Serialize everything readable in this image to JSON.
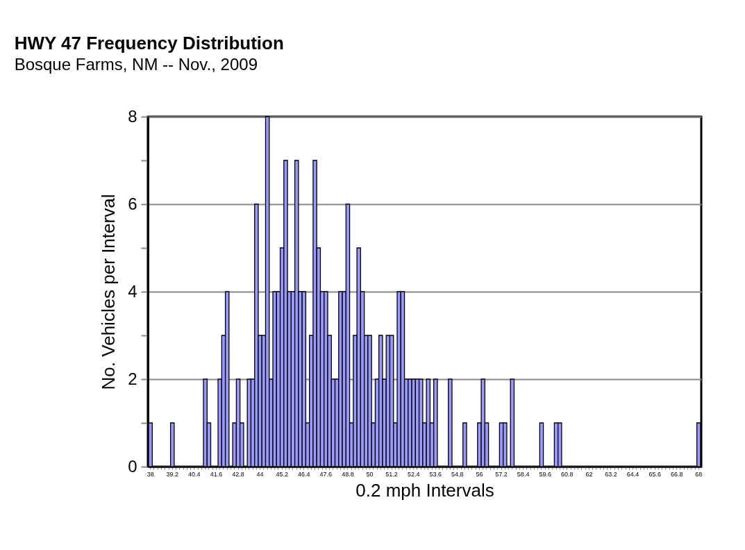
{
  "chart_data": {
    "type": "bar",
    "title": "HWY 47 Frequency Distribution",
    "subtitle": "Bosque Farms, NM -- Nov., 2009",
    "xlabel": "0.2 mph Intervals",
    "ylabel": "No. Vehicles per Interval",
    "categories": [
      "38",
      null,
      null,
      null,
      null,
      null,
      "39.2",
      null,
      null,
      null,
      null,
      null,
      "40.4",
      null,
      null,
      null,
      null,
      null,
      "41.6",
      null,
      null,
      null,
      null,
      null,
      "42.8",
      null,
      null,
      null,
      null,
      null,
      "44",
      null,
      null,
      null,
      null,
      null,
      "45.2",
      null,
      null,
      null,
      null,
      null,
      "46.4",
      null,
      null,
      null,
      null,
      null,
      "47.6",
      null,
      null,
      null,
      null,
      null,
      "48.8",
      null,
      null,
      null,
      null,
      null,
      "50",
      null,
      null,
      null,
      null,
      null,
      "51.2",
      null,
      null,
      null,
      null,
      null,
      "52.4",
      null,
      null,
      null,
      null,
      null,
      "53.6",
      null,
      null,
      null,
      null,
      null,
      "54.8",
      null,
      null,
      null,
      null,
      null,
      "56",
      null,
      null,
      null,
      null,
      null,
      "57.2",
      null,
      null,
      null,
      null,
      null,
      "58.4",
      null,
      null,
      null,
      null,
      null,
      "59.6",
      null,
      null,
      null,
      null,
      null,
      "60.8",
      null,
      null,
      null,
      null,
      null,
      "62",
      null,
      null,
      null,
      null,
      null,
      "63.2",
      null,
      null,
      null,
      null,
      null,
      "64.4",
      null,
      null,
      null,
      null,
      null,
      "65.6",
      null,
      null,
      null,
      null,
      null,
      "66.8",
      null,
      null,
      null,
      null,
      null,
      "68"
    ],
    "values": [
      1,
      0,
      0,
      0,
      0,
      0,
      1,
      0,
      0,
      0,
      0,
      0,
      0,
      0,
      0,
      2,
      1,
      0,
      0,
      2,
      3,
      4,
      0,
      1,
      2,
      1,
      0,
      2,
      2,
      6,
      3,
      3,
      8,
      2,
      4,
      4,
      5,
      7,
      4,
      4,
      7,
      4,
      4,
      1,
      3,
      7,
      5,
      4,
      4,
      3,
      2,
      2,
      4,
      4,
      6,
      1,
      3,
      5,
      4,
      3,
      3,
      1,
      2,
      3,
      2,
      3,
      3,
      1,
      4,
      4,
      2,
      2,
      2,
      2,
      2,
      1,
      2,
      1,
      2,
      0,
      0,
      0,
      2,
      0,
      0,
      0,
      1,
      0,
      0,
      0,
      1,
      2,
      1,
      0,
      0,
      0,
      1,
      1,
      0,
      2,
      0,
      0,
      0,
      0,
      0,
      0,
      0,
      1,
      0,
      0,
      0,
      1,
      1,
      0,
      0,
      0,
      0,
      0,
      0,
      0,
      0,
      0,
      0,
      0,
      0,
      0,
      0,
      0,
      0,
      0,
      0,
      0,
      0,
      0,
      0,
      0,
      0,
      0,
      0,
      0,
      0,
      0,
      0,
      0,
      0,
      0,
      0,
      0,
      0,
      0,
      1
    ],
    "color": "#9999ff",
    "ylim": [
      0,
      8
    ],
    "yticks": [
      0,
      {
        "value": 1,
        "label": null
      },
      2,
      {
        "value": 3,
        "label": null
      },
      4,
      {
        "value": 5,
        "label": null
      },
      6,
      {
        "value": 7,
        "label": null
      },
      8
    ],
    "grid": "y"
  }
}
